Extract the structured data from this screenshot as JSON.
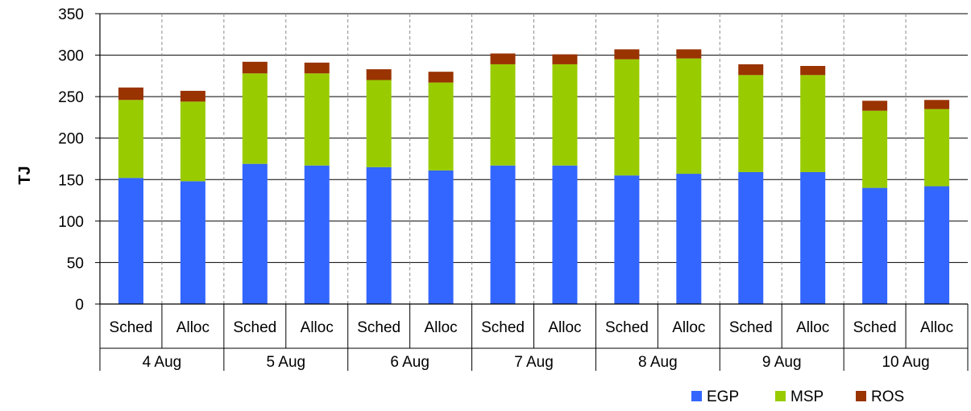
{
  "chart_data": {
    "type": "bar",
    "stacked": true,
    "ylabel": "TJ",
    "ylim": [
      0,
      350
    ],
    "yticks": [
      0,
      50,
      100,
      150,
      200,
      250,
      300,
      350
    ],
    "groups": [
      "4 Aug",
      "5 Aug",
      "6 Aug",
      "7 Aug",
      "8 Aug",
      "9 Aug",
      "10 Aug"
    ],
    "subcategories": [
      "Sched",
      "Alloc"
    ],
    "categories": [
      "4 Aug Sched",
      "4 Aug Alloc",
      "5 Aug Sched",
      "5 Aug Alloc",
      "6 Aug Sched",
      "6 Aug Alloc",
      "7 Aug Sched",
      "7 Aug Alloc",
      "8 Aug Sched",
      "8 Aug Alloc",
      "9 Aug Sched",
      "9 Aug Alloc",
      "10 Aug Sched",
      "10 Aug Alloc"
    ],
    "series": [
      {
        "name": "EGP",
        "color": "#3366ff",
        "values": [
          152,
          148,
          169,
          167,
          165,
          161,
          167,
          167,
          155,
          157,
          159,
          159,
          140,
          142
        ]
      },
      {
        "name": "MSP",
        "color": "#99cc00",
        "values": [
          94,
          96,
          109,
          111,
          105,
          106,
          122,
          122,
          140,
          139,
          117,
          117,
          93,
          93
        ]
      },
      {
        "name": "ROS",
        "color": "#993300",
        "values": [
          15,
          13,
          14,
          13,
          13,
          13,
          13,
          12,
          12,
          11,
          13,
          11,
          12,
          11
        ]
      }
    ],
    "grid": {
      "horizontal": true,
      "vertical_dashed_between_bars": true
    },
    "legend_position": "bottom-right"
  }
}
